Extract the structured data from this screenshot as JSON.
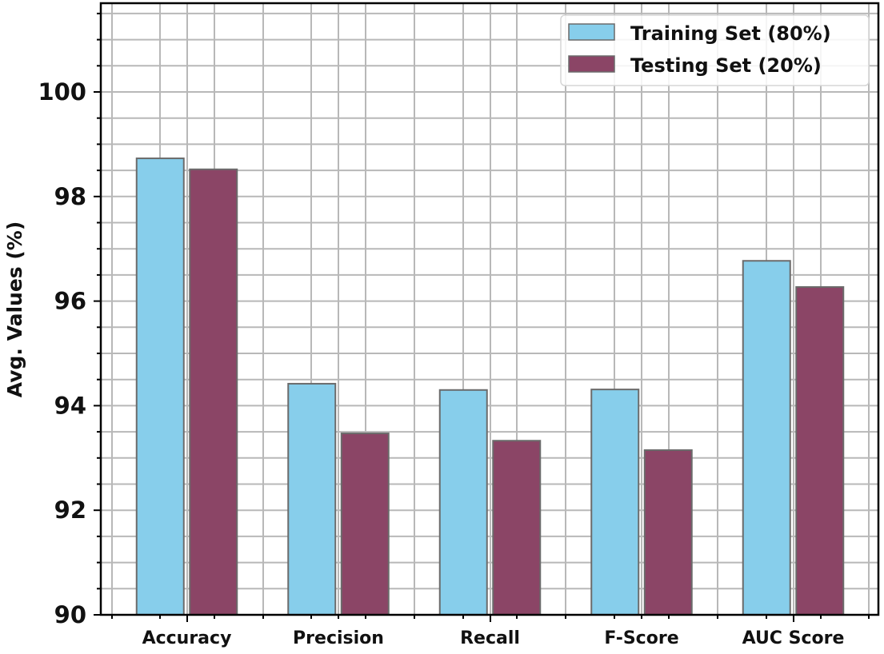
{
  "chart_data": {
    "type": "bar",
    "title": "",
    "xlabel": "",
    "ylabel": "Avg. Values (%)",
    "categories": [
      "Accuracy",
      "Precision",
      "Recall",
      "F-Score",
      "AUC Score"
    ],
    "series": [
      {
        "name": "Training Set (80%)",
        "color": "#87ceeb",
        "values": [
          98.73,
          94.42,
          94.3,
          94.31,
          96.77
        ]
      },
      {
        "name": "Testing Set (20%)",
        "color": "#8b4566",
        "values": [
          98.52,
          93.47,
          93.33,
          93.15,
          96.27
        ]
      }
    ],
    "ylim": [
      90,
      101.7
    ],
    "yticks": [
      90,
      92,
      94,
      96,
      98,
      100
    ],
    "ytick_labels": [
      "90",
      "92",
      "94",
      "96",
      "98",
      "100"
    ],
    "minor_ytick_step": 0.5,
    "grid": true,
    "legend_position": "upper right",
    "bar_edge_color": "#6b6b6b",
    "grid_color": "#b8b8b8"
  }
}
